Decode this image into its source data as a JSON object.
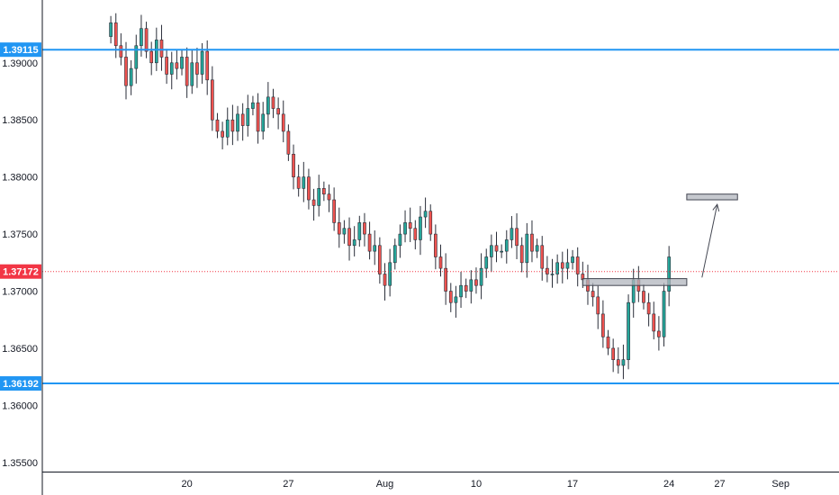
{
  "chart_data": {
    "type": "candlestick",
    "title": "",
    "xlabel": "",
    "ylabel": "",
    "ylim": [
      1.3542,
      1.3955
    ],
    "y_ticks": [
      "1.39000",
      "1.38500",
      "1.38000",
      "1.37500",
      "1.37000",
      "1.36500",
      "1.36000",
      "1.35500"
    ],
    "y_tick_values": [
      1.39,
      1.385,
      1.38,
      1.375,
      1.37,
      1.365,
      1.36,
      1.355
    ],
    "x_ticks": [
      "20",
      "27",
      "Aug",
      "10",
      "17",
      "24",
      "27",
      "Sep"
    ],
    "x_tick_index": [
      15,
      35,
      54,
      72,
      91,
      110,
      120,
      132
    ],
    "x_range": [
      -13.5,
      143.5
    ],
    "grid": false,
    "colors": {
      "up": "#26a69a",
      "down": "#ef5350",
      "level": "#2196f3",
      "price": "#f23645",
      "zone_fill": "#b2b5be",
      "zone_edge": "#434651",
      "arrow": "#434651"
    },
    "series": [
      {
        "x": [
          0,
          1,
          2,
          3,
          4,
          5,
          6,
          7,
          8,
          9,
          10,
          11,
          12,
          13,
          14,
          15,
          16,
          17,
          18,
          19,
          20,
          21,
          22,
          23,
          24,
          25,
          26,
          27,
          28,
          29,
          30,
          31,
          32,
          33,
          34,
          35,
          36,
          37,
          38,
          39,
          40,
          41,
          42,
          43,
          44,
          45,
          46,
          47,
          48,
          49,
          50,
          51,
          52,
          53,
          54,
          55,
          56,
          57,
          58,
          59,
          60,
          61,
          62,
          63,
          64,
          65,
          66,
          67,
          68,
          69,
          70,
          71,
          72,
          73,
          74,
          75,
          76,
          77,
          78,
          79,
          80,
          81,
          82,
          83,
          84,
          85,
          86,
          87,
          88,
          89,
          90,
          91,
          92,
          93,
          94,
          95,
          96,
          97,
          98,
          99,
          100,
          101,
          102,
          103,
          104,
          105,
          106,
          107,
          108,
          109,
          110
        ],
        "close": [
          1.3935,
          1.3915,
          1.3905,
          1.388,
          1.3895,
          1.3915,
          1.393,
          1.391,
          1.39,
          1.392,
          1.3905,
          1.389,
          1.39,
          1.3895,
          1.3905,
          1.388,
          1.39,
          1.389,
          1.391,
          1.3885,
          1.385,
          1.384,
          1.3835,
          1.385,
          1.384,
          1.3855,
          1.3845,
          1.386,
          1.3865,
          1.384,
          1.3855,
          1.387,
          1.386,
          1.3855,
          1.384,
          1.382,
          1.38,
          1.379,
          1.38,
          1.378,
          1.3775,
          1.379,
          1.3785,
          1.378,
          1.376,
          1.375,
          1.3755,
          1.374,
          1.3745,
          1.376,
          1.375,
          1.3735,
          1.374,
          1.3715,
          1.3705,
          1.3725,
          1.374,
          1.375,
          1.376,
          1.3755,
          1.3745,
          1.3765,
          1.377,
          1.375,
          1.373,
          1.372,
          1.37,
          1.369,
          1.3695,
          1.3705,
          1.37,
          1.371,
          1.3705,
          1.372,
          1.373,
          1.374,
          1.3735,
          1.3735,
          1.3745,
          1.3755,
          1.374,
          1.3725,
          1.375,
          1.3735,
          1.374,
          1.372,
          1.3715,
          1.3715,
          1.3725,
          1.372,
          1.3725,
          1.373,
          1.3715,
          1.371,
          1.37,
          1.3695,
          1.368,
          1.366,
          1.365,
          1.364,
          1.3635,
          1.364,
          1.369,
          1.371,
          1.37,
          1.369,
          1.368,
          1.3665,
          1.366,
          1.37,
          1.373
        ]
      }
    ],
    "price_labels": [
      {
        "label": "1.39115",
        "value": 1.39115
      },
      {
        "label": "1.37172",
        "value": 1.37172
      },
      {
        "label": "1.36192",
        "value": 1.36192
      }
    ],
    "zones": [
      {
        "x": [
          93,
          113.5
        ],
        "y": [
          1.3705,
          1.3711
        ]
      },
      {
        "x": [
          113.5,
          123.5
        ],
        "y": [
          1.378,
          1.3785
        ]
      }
    ],
    "arrow": {
      "from": [
        116.5,
        1.3712
      ],
      "to": [
        119.5,
        1.3776
      ]
    }
  }
}
